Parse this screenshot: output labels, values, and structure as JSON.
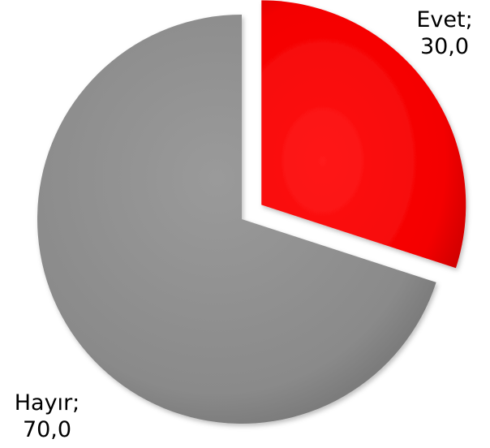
{
  "chart_data": {
    "type": "pie",
    "slices": [
      {
        "label": "Evet",
        "value": 30.0,
        "value_text": "30,0",
        "color": "#ff0000",
        "exploded": true
      },
      {
        "label": "Hayır",
        "value": 70.0,
        "value_text": "70,0",
        "color": "#8c8c8c",
        "exploded": false
      }
    ],
    "start_angle_deg": 0,
    "direction": "clockwise",
    "label_separator": ";"
  }
}
